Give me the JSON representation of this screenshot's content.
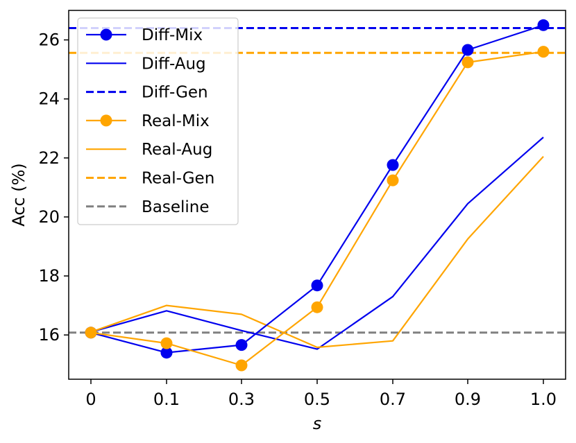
{
  "chart_data": {
    "type": "line",
    "title": "",
    "xlabel": "s",
    "ylabel": "Acc (%)",
    "categories": [
      "0",
      "0.1",
      "0.3",
      "0.5",
      "0.7",
      "0.9",
      "1.0"
    ],
    "ylim": [
      14.5,
      27.0
    ],
    "yticks": [
      16,
      18,
      20,
      22,
      24,
      26
    ],
    "grid": false,
    "legend_position": "top-left",
    "series": [
      {
        "name": "Diff-Mix",
        "style": "line-marker",
        "color": "#0000ee",
        "values": [
          16.08,
          15.4,
          15.66,
          17.68,
          21.76,
          25.66,
          26.5
        ]
      },
      {
        "name": "Diff-Aug",
        "style": "line",
        "color": "#0000ee",
        "values": [
          16.1,
          16.82,
          16.15,
          15.52,
          17.3,
          20.45,
          22.7
        ]
      },
      {
        "name": "Diff-Gen",
        "style": "hline-dashed",
        "color": "#0000ee",
        "value": 26.4
      },
      {
        "name": "Real-Mix",
        "style": "line-marker",
        "color": "#ffa500",
        "values": [
          16.08,
          15.72,
          14.97,
          16.94,
          21.24,
          25.24,
          25.6
        ]
      },
      {
        "name": "Real-Aug",
        "style": "line",
        "color": "#ffa500",
        "values": [
          16.1,
          17.0,
          16.7,
          15.58,
          15.8,
          19.25,
          22.05
        ]
      },
      {
        "name": "Real-Gen",
        "style": "hline-dashed",
        "color": "#ffa500",
        "value": 25.56
      },
      {
        "name": "Baseline",
        "style": "hline-dashed",
        "color": "#808080",
        "value": 16.08
      }
    ]
  }
}
